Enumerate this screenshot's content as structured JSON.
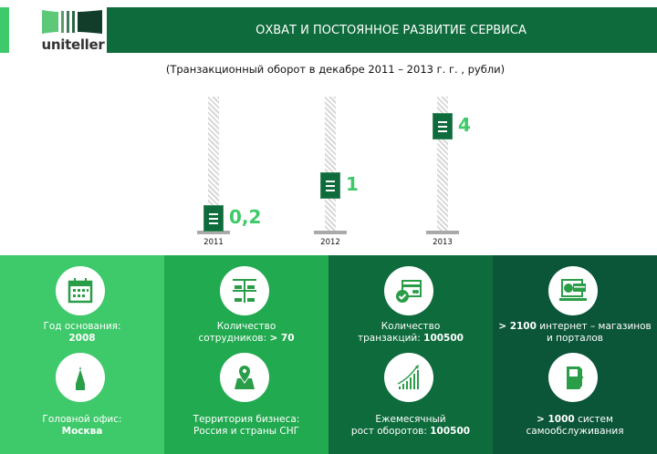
{
  "header": {
    "logo_text": "uniteller",
    "title": "ОХВАТ И ПОСТОЯННОЕ РАЗВИТИЕ СЕРВИСА"
  },
  "chart_data": {
    "type": "bar",
    "title": "(Транзакционный оборот в декабре 2011 – 2013 г. г. , рубли)",
    "categories": [
      "2011",
      "2012",
      "2013"
    ],
    "values": [
      0.2,
      1,
      4
    ],
    "value_labels": [
      "0,2",
      "1",
      "4"
    ],
    "colors": {
      "marker": "#0e6b3c",
      "label": "#3ec96a"
    }
  },
  "panels": [
    {
      "color": "#3ec96a",
      "items": [
        {
          "icon": "calendar-icon",
          "line1": "Год основания:",
          "line2_bold": "2008",
          "line2": ""
        },
        {
          "icon": "kremlin-tower-icon",
          "line1": "Головной офис:",
          "line2_bold": "Москва",
          "line2": ""
        }
      ]
    },
    {
      "color": "#22aa50",
      "items": [
        {
          "icon": "office-employees-icon",
          "line1": "Количество",
          "line2": "сотрудников: ",
          "line2_bold": "> 70"
        },
        {
          "icon": "map-pin-icon",
          "line1": "Территория бизнеса:",
          "line2": "Россия и страны СНГ",
          "line2_bold": ""
        }
      ]
    },
    {
      "color": "#0e6b3c",
      "items": [
        {
          "icon": "credit-card-check-icon",
          "line1": "Количество",
          "line2": "транзакций: ",
          "line2_bold": "100500"
        },
        {
          "icon": "growth-chart-icon",
          "line1": "Ежемесячный",
          "line2": "рост оборотов: ",
          "line2_bold": "100500"
        }
      ]
    },
    {
      "color": "#0b5539",
      "items": [
        {
          "icon": "laptop-ecommerce-icon",
          "line1_bold": "> 2100",
          "line1": " интернет – магазинов",
          "line2": "и порталов",
          "line2_bold": ""
        },
        {
          "icon": "kiosk-icon",
          "line1_bold": "> 1000",
          "line1": " систем",
          "line2": "самообслуживания",
          "line2_bold": ""
        }
      ]
    }
  ]
}
